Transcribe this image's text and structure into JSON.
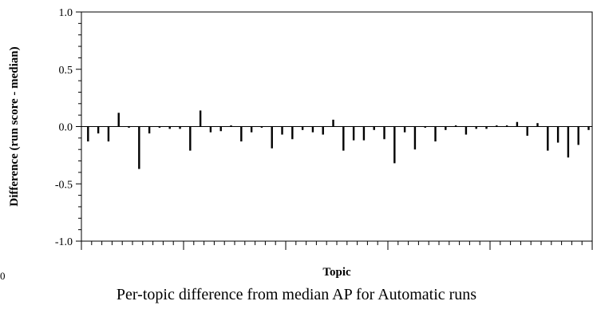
{
  "caption": "Per-topic difference from median AP for Automatic runs",
  "stray_text": "0",
  "chart_data": {
    "type": "bar",
    "title": "",
    "xlabel": "Topic",
    "ylabel": "Difference (run score - median)",
    "ylim": [
      -1.0,
      1.0
    ],
    "y_ticks": [
      1.0,
      0.5,
      0.0,
      -0.5,
      -1.0
    ],
    "y_tick_labels": [
      "1.0",
      "0.5",
      "0.0",
      "-0.5",
      "-1.0"
    ],
    "grid": false,
    "series": [
      {
        "values": [
          -0.13,
          -0.06,
          -0.13,
          0.12,
          -0.01,
          -0.37,
          -0.06,
          -0.01,
          -0.02,
          -0.02,
          -0.21,
          0.14,
          -0.05,
          -0.04,
          0.01,
          -0.13,
          -0.05,
          -0.01,
          -0.19,
          -0.07,
          -0.11,
          -0.03,
          -0.05,
          -0.07,
          0.06,
          -0.21,
          -0.12,
          -0.12,
          -0.03,
          -0.11,
          -0.32,
          -0.05,
          -0.2,
          -0.01,
          -0.13,
          -0.03,
          0.01,
          -0.07,
          -0.02,
          -0.02,
          0.01,
          0.01,
          0.04,
          -0.08,
          0.03,
          -0.21,
          -0.14,
          -0.27,
          -0.16,
          -0.03
        ]
      }
    ]
  }
}
